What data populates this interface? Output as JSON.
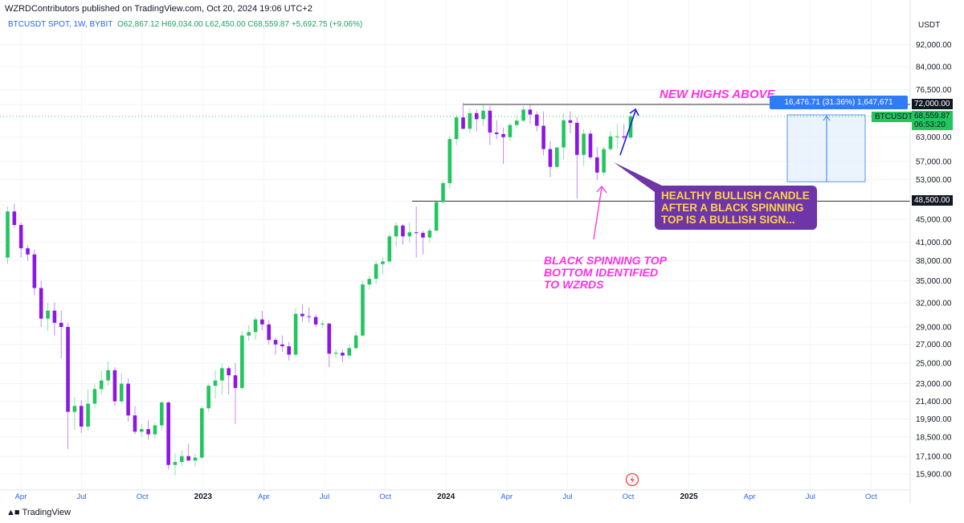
{
  "header": {
    "published": "WZRDContributors published on TradingView.com, Oct 20, 2024 19:06 UTC+2",
    "symbol": "BTCUSDT SPOT, 1W, BYBIT",
    "ohlc": "O62,867.12 H69,034.00 L62,450.00 C68,559.87 +5,692.75 (+9.06%)"
  },
  "axis_title": "USDT",
  "brand": "TradingView",
  "annotations": {
    "new_highs": "NEW HIGHS ABOVE",
    "callout_lines": [
      "HEALTHY BULLISH CANDLE",
      "AFTER A BLACK SPINNING",
      "TOP IS A BULLISH SIGN..."
    ],
    "spinning_lines": [
      "BLACK SPINNING TOP",
      "BOTTOM IDENTIFIED",
      "TO WZRDS"
    ],
    "measure": "16,476.71 (31.36%) 1,647,671"
  },
  "price_tags": {
    "resistance": "72,000.00",
    "support": "48,500.00",
    "symbol": "BTCUSDT",
    "last": "68,559.87",
    "countdown": "06:53:20"
  },
  "colors": {
    "up": "#22c55e",
    "down": "#8b16e6",
    "line": "#2a2e39",
    "pink": "#ff2ee6",
    "callout_bg": "#6d35a8",
    "callout_text": "#ffd24a",
    "measure": "#2e7cf6"
  },
  "chart_data": {
    "type": "candlestick",
    "title": "BTCUSDT SPOT, 1W, BYBIT",
    "y_scale": "log",
    "y_ticks": [
      92000,
      84000,
      76500,
      72000,
      63000,
      57000,
      53000,
      48500,
      45000,
      41000,
      38000,
      35000,
      32000,
      29000,
      27000,
      25000,
      23000,
      21400,
      19900,
      18500,
      17100,
      15900
    ],
    "x_labels": [
      "Apr",
      "Jul",
      "Oct",
      "2023",
      "Apr",
      "Jul",
      "Oct",
      "2024",
      "Apr",
      "Jul",
      "Oct",
      "2025",
      "Apr",
      "Jul",
      "Oct"
    ],
    "horizontal_levels": [
      72000,
      48500
    ],
    "measure_range": [
      52500,
      69000
    ],
    "candles": [
      [
        38500,
        47500,
        37500,
        46500
      ],
      [
        46500,
        48000,
        43500,
        44000
      ],
      [
        44000,
        44500,
        38500,
        40000
      ],
      [
        40000,
        40500,
        38000,
        39000
      ],
      [
        39000,
        39800,
        33000,
        34000
      ],
      [
        34000,
        35000,
        29000,
        30000
      ],
      [
        30000,
        32000,
        28500,
        31000
      ],
      [
        31000,
        32000,
        28000,
        29500
      ],
      [
        29500,
        31000,
        25500,
        29000
      ],
      [
        29000,
        29500,
        17600,
        20500
      ],
      [
        20500,
        21800,
        19000,
        21000
      ],
      [
        21000,
        21500,
        18800,
        19300
      ],
      [
        19300,
        22500,
        19000,
        21200
      ],
      [
        21200,
        23000,
        20800,
        22500
      ],
      [
        22500,
        24200,
        22000,
        23300
      ],
      [
        23300,
        25200,
        22800,
        24300
      ],
      [
        24300,
        24600,
        21000,
        21400
      ],
      [
        21400,
        24000,
        21200,
        23000
      ],
      [
        23000,
        23500,
        19700,
        20200
      ],
      [
        20200,
        21000,
        18700,
        18900
      ],
      [
        18900,
        19500,
        18500,
        19100
      ],
      [
        19100,
        19800,
        18300,
        18700
      ],
      [
        18700,
        19600,
        18400,
        19400
      ],
      [
        19400,
        21400,
        19000,
        21300
      ],
      [
        21300,
        21400,
        16200,
        16500
      ],
      [
        16500,
        17300,
        15800,
        16700
      ],
      [
        16700,
        17500,
        16400,
        17100
      ],
      [
        17100,
        18000,
        16800,
        16800
      ],
      [
        16800,
        17300,
        16400,
        17000
      ],
      [
        17000,
        21000,
        16900,
        20800
      ],
      [
        20800,
        23000,
        20500,
        22800
      ],
      [
        22800,
        24300,
        21600,
        23300
      ],
      [
        23300,
        25000,
        22000,
        24500
      ],
      [
        24500,
        24700,
        22000,
        23800
      ],
      [
        23800,
        25000,
        19500,
        22600
      ],
      [
        22600,
        28500,
        22400,
        28000
      ],
      [
        28000,
        29200,
        27400,
        28400
      ],
      [
        28400,
        30200,
        27500,
        29900
      ],
      [
        29900,
        31000,
        28600,
        29300
      ],
      [
        29300,
        29800,
        27000,
        27500
      ],
      [
        27500,
        27800,
        25900,
        27000
      ],
      [
        27000,
        28000,
        26200,
        26800
      ],
      [
        26800,
        27300,
        25300,
        25900
      ],
      [
        25900,
        31300,
        25700,
        30600
      ],
      [
        30600,
        31800,
        29600,
        30300
      ],
      [
        30300,
        31400,
        29500,
        30200
      ],
      [
        30200,
        30500,
        29000,
        29300
      ],
      [
        29300,
        29800,
        28900,
        29400
      ],
      [
        29400,
        29500,
        24600,
        26000
      ],
      [
        26000,
        26500,
        25500,
        26100
      ],
      [
        26100,
        26400,
        25100,
        25800
      ],
      [
        25800,
        27000,
        25500,
        26600
      ],
      [
        26600,
        28500,
        26400,
        28000
      ],
      [
        28000,
        35000,
        27900,
        34500
      ],
      [
        34500,
        35800,
        33800,
        35300
      ],
      [
        35300,
        38000,
        34500,
        37500
      ],
      [
        37500,
        38600,
        36000,
        37900
      ],
      [
        37900,
        42500,
        37600,
        42000
      ],
      [
        42000,
        44500,
        40300,
        43900
      ],
      [
        43900,
        44200,
        40600,
        42000
      ],
      [
        42000,
        44500,
        41000,
        42700
      ],
      [
        42700,
        47500,
        38500,
        42600
      ],
      [
        42600,
        43000,
        39000,
        41800
      ],
      [
        41800,
        43500,
        41000,
        43000
      ],
      [
        43000,
        48500,
        42800,
        48300
      ],
      [
        48300,
        52800,
        48100,
        52200
      ],
      [
        52200,
        63500,
        51000,
        62500
      ],
      [
        62500,
        69000,
        61000,
        68300
      ],
      [
        68300,
        72500,
        65000,
        65200
      ],
      [
        65200,
        71000,
        64000,
        69500
      ],
      [
        69500,
        70500,
        64500,
        67800
      ],
      [
        67800,
        72000,
        66000,
        70200
      ],
      [
        70200,
        71500,
        61000,
        64200
      ],
      [
        64200,
        67500,
        62500,
        63800
      ],
      [
        63800,
        65500,
        56500,
        63000
      ],
      [
        63000,
        66800,
        62000,
        66200
      ],
      [
        66200,
        68500,
        65500,
        67400
      ],
      [
        67400,
        71500,
        67000,
        70500
      ],
      [
        70500,
        71900,
        66500,
        69100
      ],
      [
        69100,
        70000,
        64500,
        66000
      ],
      [
        66000,
        70000,
        58500,
        60000
      ],
      [
        60000,
        62000,
        53500,
        55800
      ],
      [
        55800,
        60500,
        55500,
        60400
      ],
      [
        60400,
        69500,
        57500,
        67500
      ],
      [
        67500,
        70000,
        64000,
        66800
      ],
      [
        66800,
        68400,
        49000,
        58600
      ],
      [
        58600,
        65000,
        56000,
        63900
      ],
      [
        63900,
        64900,
        57500,
        58000
      ],
      [
        58000,
        60500,
        52800,
        54500
      ],
      [
        54500,
        60600,
        53800,
        60000
      ],
      [
        60000,
        64500,
        59500,
        63200
      ],
      [
        63200,
        66500,
        60000,
        63200
      ],
      [
        63200,
        66400,
        62300,
        62900
      ],
      [
        62900,
        69000,
        62400,
        68600
      ]
    ]
  }
}
